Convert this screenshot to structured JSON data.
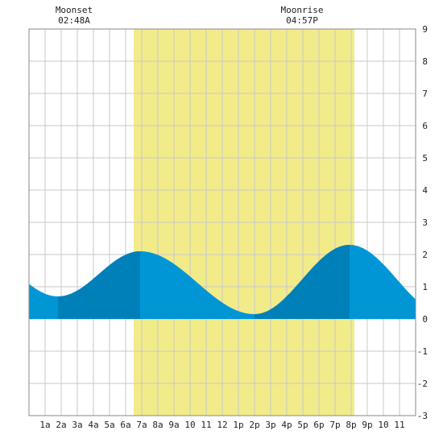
{
  "chart_data": {
    "type": "area",
    "title": "",
    "xlabel": "",
    "ylabel": "",
    "x_range_hours": [
      0,
      24
    ],
    "ylim": [
      -3,
      9
    ],
    "y_ticks": [
      -3,
      -2,
      -1,
      0,
      1,
      2,
      3,
      4,
      5,
      6,
      7,
      8,
      9
    ],
    "x_tick_labels": [
      "1a",
      "2a",
      "3a",
      "4a",
      "5a",
      "6a",
      "7a",
      "8a",
      "9a",
      "10",
      "11",
      "12",
      "1p",
      "2p",
      "3p",
      "4p",
      "5p",
      "6p",
      "7p",
      "8p",
      "9p",
      "10",
      "11"
    ],
    "grid": true,
    "daylight": {
      "start_hour": 6.5,
      "end_hour": 20.2,
      "color": "#f2eb8a"
    },
    "moon_events": [
      {
        "label": "Moonset",
        "time": "02:48A",
        "hour": 2.8
      },
      {
        "label": "Moonrise",
        "time": "04:57P",
        "hour": 16.95
      }
    ],
    "tide_extremes": [
      {
        "type": "low",
        "hour": 1.8,
        "height": 0.7
      },
      {
        "type": "high",
        "hour": 6.9,
        "height": 2.1
      },
      {
        "type": "low",
        "hour": 14.0,
        "height": 0.15
      },
      {
        "type": "high",
        "hour": 19.9,
        "height": 2.3
      }
    ],
    "tide_start_height": 0.95,
    "tide_end_height": 1.2,
    "colors": {
      "tide": "#0096d6",
      "tide_dark": "#0080b8",
      "grid": "#c8c8c8"
    }
  }
}
